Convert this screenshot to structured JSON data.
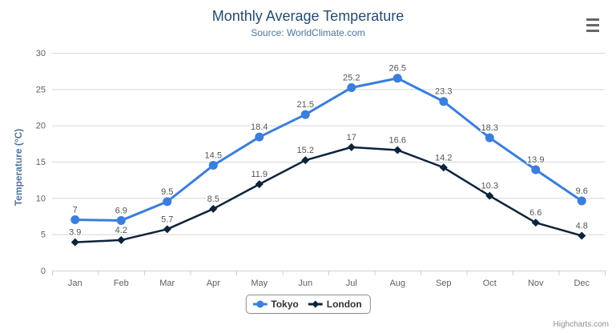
{
  "chart": {
    "title": "Monthly Average Temperature",
    "subtitle": "Source: WorldClimate.com",
    "y_axis_title": "Temperature (°C)",
    "credits": "Highcharts.com",
    "export_menu_icon": "hamburger-icon"
  },
  "chart_data": {
    "type": "line",
    "title": "Monthly Average Temperature",
    "subtitle": "Source: WorldClimate.com",
    "categories": [
      "Jan",
      "Feb",
      "Mar",
      "Apr",
      "May",
      "Jun",
      "Jul",
      "Aug",
      "Sep",
      "Oct",
      "Nov",
      "Dec"
    ],
    "series": [
      {
        "name": "Tokyo",
        "color": "#3b7edc",
        "marker": "circle",
        "values": [
          7,
          6.9,
          9.5,
          14.5,
          18.4,
          21.5,
          25.2,
          26.5,
          23.3,
          18.3,
          13.9,
          9.6
        ]
      },
      {
        "name": "London",
        "color": "#0d233a",
        "marker": "diamond",
        "values": [
          3.9,
          4.2,
          5.7,
          8.5,
          11.9,
          15.2,
          17,
          16.6,
          14.2,
          10.3,
          6.6,
          4.8
        ]
      }
    ],
    "xlabel": "",
    "ylabel": "Temperature (°C)",
    "ylim": [
      0,
      30
    ],
    "ytick_step": 5,
    "grid": true,
    "data_labels": true,
    "legend_position": "bottom-center"
  },
  "style": {
    "grid_color": "#d8d8d8",
    "axis_line_color": "#c0d0e0",
    "tick_label_color": "#606060",
    "data_label_color": "#555555",
    "title_color": "#274b6d",
    "subtitle_color": "#4d759e",
    "legend_text_color": "#333333",
    "legend_border_color": "#909090",
    "credits_color": "#909090"
  }
}
